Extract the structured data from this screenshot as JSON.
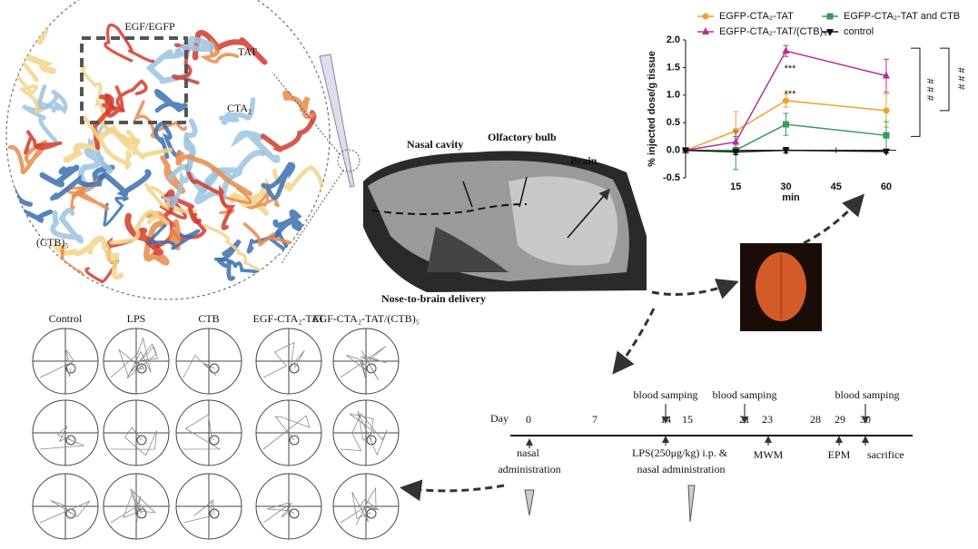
{
  "chart_data": {
    "type": "line",
    "y_label": "% injected dose/g tissue",
    "x_label": "min",
    "x": [
      0,
      15,
      30,
      60
    ],
    "xlim": [
      0,
      63
    ],
    "xticks": [
      15,
      30,
      45,
      60
    ],
    "ylim": [
      -0.5,
      2.0
    ],
    "yticks": [
      {
        "value": -0.5,
        "label": "-0.5"
      },
      {
        "value": 0,
        "label": "0.0"
      },
      {
        "value": 0.5,
        "label": "0.5"
      },
      {
        "value": 1,
        "label": "1.0"
      },
      {
        "value": 1.5,
        "label": "1.5"
      },
      {
        "value": 2,
        "label": "2.0"
      }
    ],
    "series": [
      {
        "name": "EGFP-CTA₂-TAT",
        "color": "#f0a030",
        "marker": "circle",
        "values": [
          0,
          0.35,
          0.9,
          0.72
        ],
        "errors": [
          0,
          0.35,
          0.12,
          0.3
        ]
      },
      {
        "name": "EGFP-CTA₂-TAT and CTB",
        "color": "#3a9a5a",
        "marker": "square",
        "values": [
          0,
          0.0,
          0.47,
          0.27
        ],
        "errors": [
          0,
          0.35,
          0.2,
          0.25
        ]
      },
      {
        "name": "EGFP-CTA₂-TAT/(CTB)₅",
        "color": "#b0358f",
        "marker": "triangle",
        "values": [
          0,
          0.15,
          1.8,
          1.35
        ],
        "errors": [
          0,
          0.1,
          0.1,
          0.3
        ]
      },
      {
        "name": "control",
        "color": "#111111",
        "marker": "triangle-down",
        "values": [
          0,
          -0.03,
          0.0,
          -0.02
        ],
        "errors": [
          0,
          0.05,
          0.05,
          0.03
        ]
      }
    ],
    "annotations": [
      "***",
      "***",
      "# # #",
      "# # #"
    ]
  },
  "structure": {
    "egf": "EGF/EGFP",
    "tat": "TAT",
    "cta": "CTA₂",
    "ctb": "(CTB)₅"
  },
  "rat": {
    "nasal": "Nasal cavity",
    "bulb": "Olfactory bulb",
    "brain": "Brain",
    "delivery": "Nose-to-brain delivery"
  },
  "maze": {
    "groups": [
      "Control",
      "LPS",
      "CTB",
      "EGF-CTA₂-TAT",
      "EGF-CTA₂-TAT/(CTB)₅"
    ]
  },
  "timeline": {
    "label": "Day",
    "days": [
      "0",
      "7",
      "14",
      "15",
      "21",
      "23",
      "28",
      "29",
      "30"
    ],
    "blood": [
      "blood samping",
      "blood samping",
      "blood samping"
    ],
    "nasal": "nasal administration",
    "lps": "LPS(250μg/kg) i.p. & nasal administration",
    "mwm": "MWM",
    "epm": "EPM",
    "sacrifice": "sacrifice"
  }
}
